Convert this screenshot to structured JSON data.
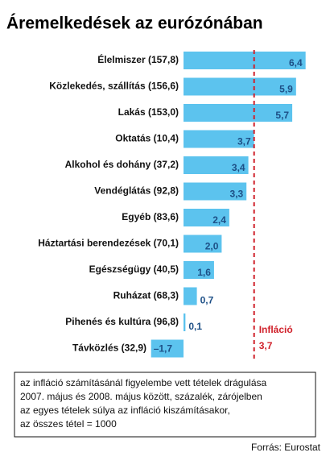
{
  "chart_data": {
    "type": "bar",
    "orientation": "horizontal",
    "title": "Áremelkedések az eurózónában",
    "categories": [
      "Élelmiszer (157,8)",
      "Közlekedés, szállítás (156,6)",
      "Lakás (153,0)",
      "Oktatás (10,4)",
      "Alkohol és dohány (37,2)",
      "Vendéglátás (92,8)",
      "Egyéb (83,6)",
      "Háztartási berendezések (70,1)",
      "Egészségügy (40,5)",
      "Ruházat (68,3)",
      "Pihenés és kultúra (96,8)",
      "Távközlés (32,9)"
    ],
    "values": [
      6.4,
      5.9,
      5.7,
      3.7,
      3.4,
      3.3,
      2.4,
      2.0,
      1.6,
      0.7,
      0.1,
      -1.7
    ],
    "value_labels": [
      "6,4",
      "5,9",
      "5,7",
      "3,7",
      "3,4",
      "3,3",
      "2,4",
      "2,0",
      "1,6",
      "0,7",
      "0,1",
      "–1,7"
    ],
    "color": "#5cc3ee",
    "reference_line": {
      "label": "Infláció",
      "value": 3.7,
      "value_label": "3,7",
      "color": "#d0202a"
    },
    "note": [
      "az infláció számításánál figyelembe vett tételek drágulása",
      "2007. május és 2008. május között, százalék, zárójelben",
      "az egyes tételek súlya az infláció kiszámításakor,",
      "az összes tétel = 1000"
    ],
    "source": "Forrás: Eurostat"
  }
}
